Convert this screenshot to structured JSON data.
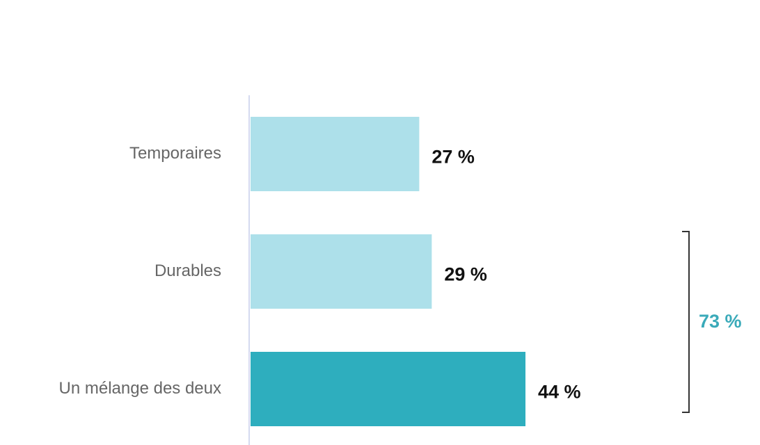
{
  "chart_data": {
    "type": "bar",
    "orientation": "horizontal",
    "categories": [
      "Temporaires",
      "Durables",
      "Un mélange des deux"
    ],
    "values": [
      27,
      29,
      44
    ],
    "value_labels": [
      "27 %",
      "29 %",
      "44 %"
    ],
    "colors": [
      "#ade0ea",
      "#ade0ea",
      "#2eaebe"
    ],
    "annotation": "73 %"
  }
}
